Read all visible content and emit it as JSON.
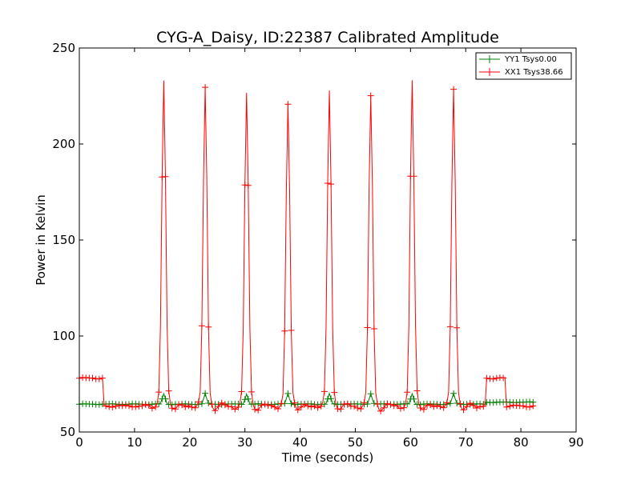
{
  "chart_data": {
    "type": "line",
    "title": "CYG-A_Daisy, ID:22387 Calibrated Amplitude",
    "xlabel": "Time (seconds)",
    "ylabel": "Power in Kelvin",
    "xlim": [
      0,
      90
    ],
    "ylim": [
      50,
      250
    ],
    "xticks": [
      0,
      10,
      20,
      30,
      40,
      50,
      60,
      70,
      80,
      90
    ],
    "yticks": [
      50,
      100,
      150,
      200,
      250
    ],
    "grid": false,
    "legend_position": "top-right",
    "marker": "+",
    "series": [
      {
        "name": "YY1 Tsys0.00",
        "color": "#008000",
        "peaks": [
          15.3,
          22.8,
          30.3,
          37.8,
          45.3,
          52.8,
          60.3,
          67.8
        ],
        "peak_height": 70,
        "baseline": 64.5,
        "baseline_late": 65.5,
        "x_end": 82.5
      },
      {
        "name": "XX1 Tsys38.66",
        "color": "#ff0000",
        "peaks": [
          15.3,
          22.8,
          30.3,
          37.8,
          45.3,
          52.8,
          60.3,
          67.8
        ],
        "peak_heights": [
          233,
          230,
          226,
          221,
          228,
          225,
          233,
          229
        ],
        "baseline": 63.5,
        "step_levels": [
          {
            "from": 0,
            "to": 4.3,
            "value": 78
          },
          {
            "from": 73.8,
            "to": 77.2,
            "value": 78
          }
        ],
        "x_end": 82.5
      }
    ]
  }
}
